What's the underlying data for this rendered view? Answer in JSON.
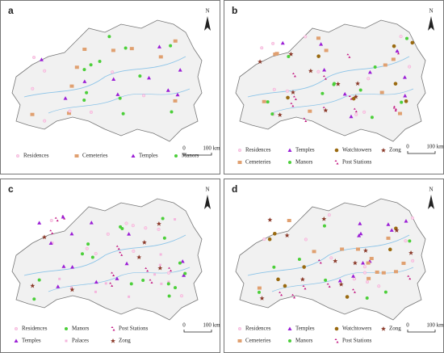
{
  "panels": [
    {
      "label": "a",
      "legend": [
        "Residences",
        "Cemeteries",
        "Temples",
        "Manors"
      ],
      "scale": [
        "0",
        "100 km"
      ],
      "north": "N"
    },
    {
      "label": "b",
      "legend": [
        "Residences",
        "Temples",
        "Watchtowers",
        "Zong",
        "Cemeteries",
        "Manors",
        "Post Stations"
      ],
      "scale": [
        "0",
        "100 km"
      ],
      "north": "N"
    },
    {
      "label": "c",
      "legend": [
        "Residences",
        "Manors",
        "Post Stations",
        "Temples",
        "Palaces",
        "Zong"
      ],
      "scale": [
        "0",
        "100 km"
      ],
      "north": "N"
    },
    {
      "label": "d",
      "legend": [
        "Residences",
        "Temples",
        "Watchtowers",
        "Zong",
        "Cemeteries",
        "Manors",
        "Post Stations"
      ],
      "scale": [
        "0",
        "100 km"
      ],
      "north": "N"
    }
  ]
}
